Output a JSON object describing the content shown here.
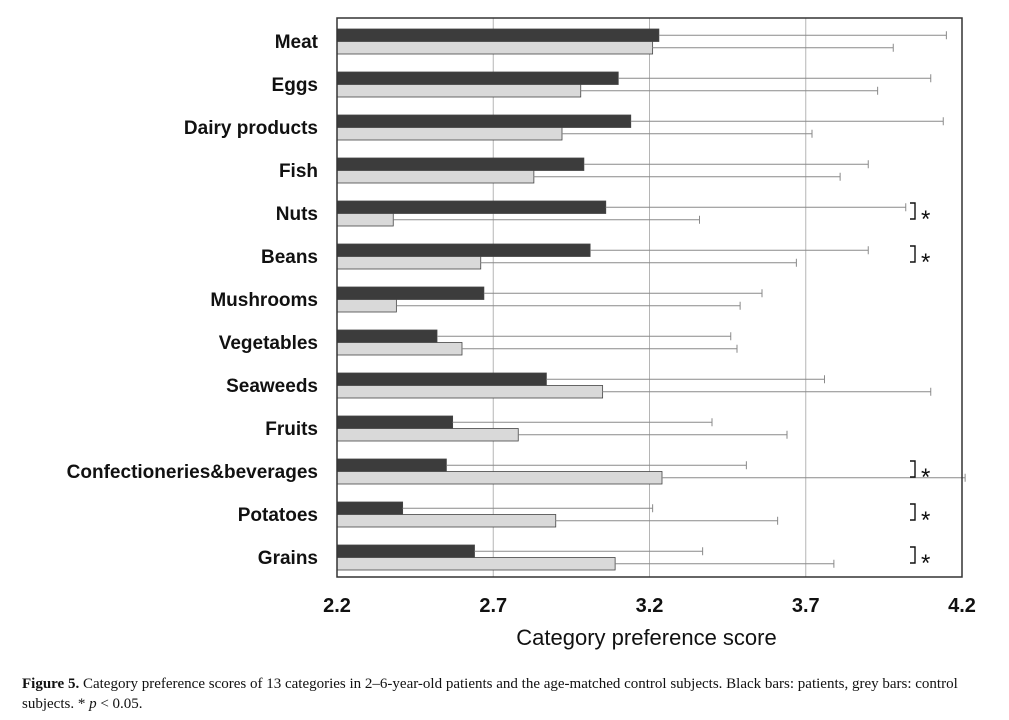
{
  "chart_data": {
    "type": "bar",
    "orientation": "horizontal",
    "categories": [
      "Meat",
      "Eggs",
      "Dairy products",
      "Fish",
      "Nuts",
      "Beans",
      "Mushrooms",
      "Vegetables",
      "Seaweeds",
      "Fruits",
      "Confectioneries&beverages",
      "Potatoes",
      "Grains"
    ],
    "series": [
      {
        "color": "#3c3c3c",
        "values": [
          3.23,
          3.1,
          3.14,
          2.99,
          3.06,
          3.01,
          2.67,
          2.52,
          2.87,
          2.57,
          2.55,
          2.41,
          2.64
        ],
        "errors": [
          0.92,
          1.0,
          1.0,
          0.91,
          0.96,
          0.89,
          0.89,
          0.94,
          0.89,
          0.83,
          0.96,
          0.8,
          0.73
        ]
      },
      {
        "color": "#d9d9d9",
        "values": [
          3.21,
          2.98,
          2.92,
          2.83,
          2.38,
          2.66,
          2.39,
          2.6,
          3.05,
          2.78,
          3.24,
          2.9,
          3.09
        ],
        "errors": [
          0.77,
          0.95,
          0.8,
          0.98,
          0.98,
          1.01,
          1.1,
          0.88,
          1.05,
          0.86,
          0.97,
          0.71,
          0.7
        ]
      }
    ],
    "significant": [
      false,
      false,
      false,
      false,
      true,
      true,
      false,
      false,
      false,
      false,
      true,
      true,
      true
    ],
    "significance_marker": "*",
    "xlim": [
      2.2,
      4.2
    ],
    "xticks": [
      "2.2",
      "2.7",
      "3.2",
      "3.7",
      "4.2"
    ],
    "xlabel": "Category preference score",
    "ylabel": "",
    "grid": "vertical",
    "legend": "none"
  },
  "caption": {
    "label": "Figure 5.",
    "text_1": " Category preference scores of 13 categories in 2–6-year-old patients and the age-matched control subjects. Black bars: patients, grey bars: control subjects. * ",
    "p_symbol": "p",
    "text_2": " < 0.05."
  }
}
